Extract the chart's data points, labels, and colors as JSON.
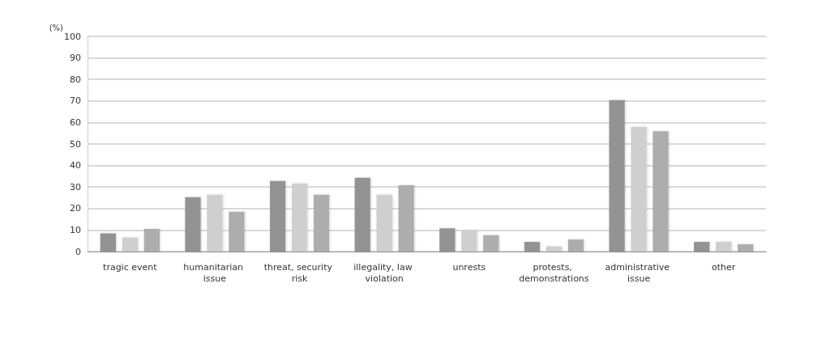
{
  "chart_data": {
    "type": "bar",
    "ylabel": "(%)",
    "categories": [
      "tragic event",
      "humanitarian issue",
      "threat, security risk",
      "illegality, law violation",
      "unrests",
      "protests, demonstrations",
      "administrative issue",
      "other"
    ],
    "series": [
      {
        "color": "#939393",
        "values": [
          8.5,
          25.3,
          32.8,
          34.3,
          10.8,
          4.5,
          70.4,
          4.5
        ]
      },
      {
        "color": "#cfcfcf",
        "values": [
          6.5,
          26.4,
          31.6,
          26.4,
          9.8,
          2.4,
          57.9,
          4.5
        ]
      },
      {
        "color": "#adadad",
        "values": [
          10.5,
          18.5,
          26.4,
          30.8,
          7.6,
          5.6,
          55.9,
          3.4
        ]
      }
    ],
    "ylim": [
      0,
      100
    ],
    "yticks": [
      0,
      10,
      20,
      30,
      40,
      50,
      60,
      70,
      80,
      90,
      100
    ],
    "grid": "y"
  }
}
